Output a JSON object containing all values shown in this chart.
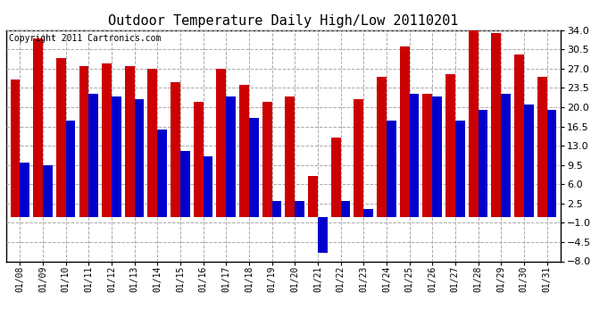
{
  "title": "Outdoor Temperature Daily High/Low 20110201",
  "copyright": "Copyright 2011 Cartronics.com",
  "dates": [
    "01/08",
    "01/09",
    "01/10",
    "01/11",
    "01/12",
    "01/13",
    "01/14",
    "01/15",
    "01/16",
    "01/17",
    "01/18",
    "01/19",
    "01/20",
    "01/21",
    "01/22",
    "01/23",
    "01/24",
    "01/25",
    "01/26",
    "01/27",
    "01/28",
    "01/29",
    "01/30",
    "01/31"
  ],
  "highs": [
    25.0,
    32.5,
    29.0,
    27.5,
    28.0,
    27.5,
    27.0,
    24.5,
    21.0,
    27.0,
    24.0,
    21.0,
    22.0,
    7.5,
    14.5,
    21.5,
    25.5,
    31.0,
    22.5,
    26.0,
    35.0,
    33.5,
    29.5,
    25.5
  ],
  "lows": [
    10.0,
    9.5,
    17.5,
    22.5,
    22.0,
    21.5,
    16.0,
    12.0,
    11.0,
    22.0,
    18.0,
    3.0,
    3.0,
    -6.5,
    3.0,
    1.5,
    17.5,
    22.5,
    22.0,
    17.5,
    19.5,
    22.5,
    20.5,
    19.5
  ],
  "high_color": "#cc0000",
  "low_color": "#0000cc",
  "bg_color": "#ffffff",
  "grid_color": "#aaaaaa",
  "ylim_min": -8.0,
  "ylim_max": 34.0,
  "yticks": [
    -8.0,
    -4.5,
    -1.0,
    2.5,
    6.0,
    9.5,
    13.0,
    16.5,
    20.0,
    23.5,
    27.0,
    30.5,
    34.0
  ],
  "bar_width": 0.42,
  "title_fontsize": 11,
  "copyright_fontsize": 7,
  "tick_fontsize": 8,
  "xtick_fontsize": 7
}
